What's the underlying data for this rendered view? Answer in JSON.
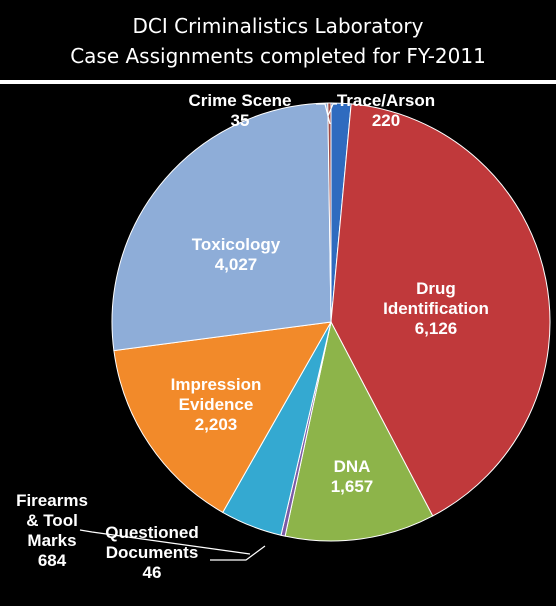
{
  "chart_data": {
    "type": "pie",
    "title_line1": "DCI Criminalistics Laboratory",
    "title_line2": "Case Assignments completed for FY-2011",
    "slices": [
      {
        "name_lines": [
          "Trace/Arson"
        ],
        "value": 220,
        "value_label": "220",
        "color": "#2f6bbf"
      },
      {
        "name_lines": [
          "Drug",
          "Identification"
        ],
        "value": 6126,
        "value_label": "6,126",
        "color": "#c0393b"
      },
      {
        "name_lines": [
          "DNA"
        ],
        "value": 1657,
        "value_label": "1,657",
        "color": "#8db44a"
      },
      {
        "name_lines": [
          "Questioned",
          "Documents"
        ],
        "value": 46,
        "value_label": "46",
        "color": "#7b5aa6"
      },
      {
        "name_lines": [
          "Firearms",
          "& Tool",
          "Marks"
        ],
        "value": 684,
        "value_label": "684",
        "color": "#34a9d1"
      },
      {
        "name_lines": [
          "Impression",
          "Evidence"
        ],
        "value": 2203,
        "value_label": "2,203",
        "color": "#f28a2a"
      },
      {
        "name_lines": [
          "Toxicology"
        ],
        "value": 4027,
        "value_label": "4,027",
        "color": "#8eadd8"
      },
      {
        "name_lines": [
          "Crime Scene"
        ],
        "value": 35,
        "value_label": "35",
        "color": "#a04a44"
      }
    ]
  }
}
